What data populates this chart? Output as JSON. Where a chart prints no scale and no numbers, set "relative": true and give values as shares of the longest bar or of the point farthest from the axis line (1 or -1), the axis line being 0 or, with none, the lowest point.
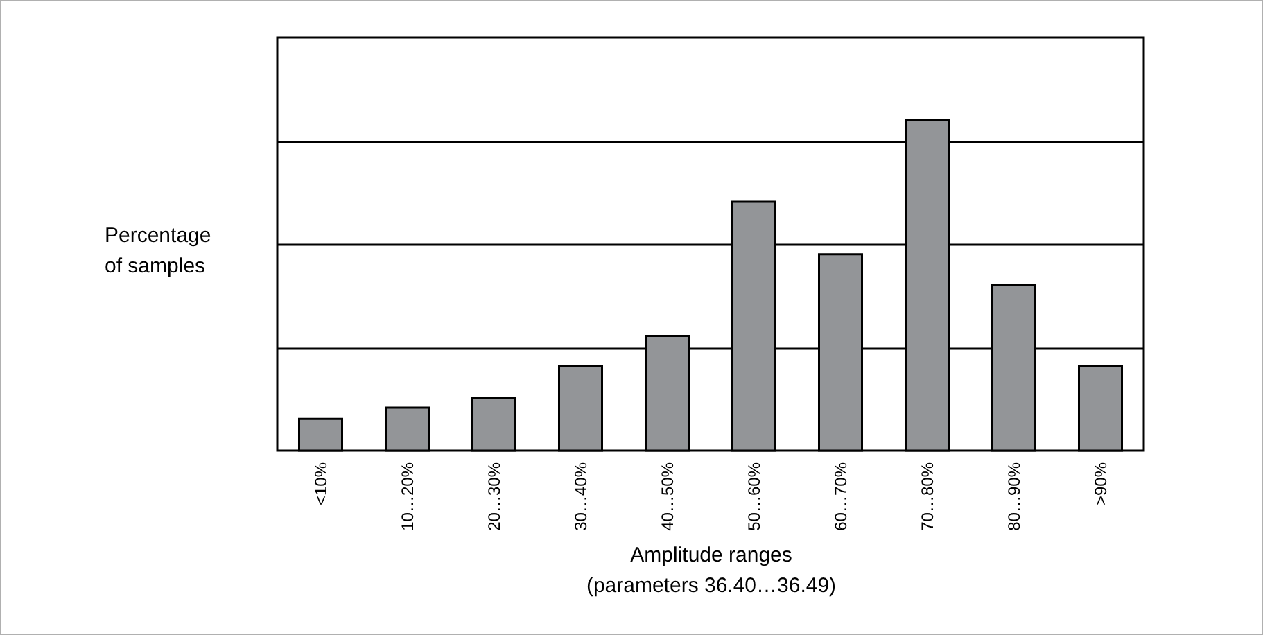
{
  "chart_data": {
    "type": "bar",
    "relative": true,
    "xlabel": "Amplitude ranges\n(parameters 36.40…36.49)",
    "ylabel": "Percentage\nof samples",
    "categories": [
      "<10%",
      "10…20%",
      "20…30%",
      "30…40%",
      "40…50%",
      "50…60%",
      "60…70%",
      "70…80%",
      "80…90%",
      ">90%"
    ],
    "values": [
      0.096,
      0.13,
      0.159,
      0.255,
      0.347,
      0.753,
      0.594,
      1,
      0.502,
      0.255
    ],
    "color": "#939598",
    "grid": "y"
  }
}
